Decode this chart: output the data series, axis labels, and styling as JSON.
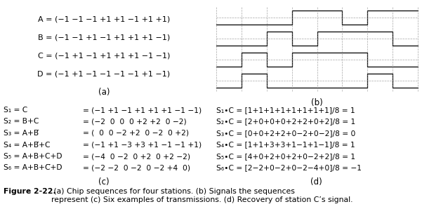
{
  "panel_a": {
    "lines": [
      "A = (−1 −1 −1 +1 +1 −1 +1 +1)",
      "B = (−1 −1 +1 −1 +1 +1 +1 −1)",
      "C = (−1 +1 −1 +1 +1 +1 −1 −1)",
      "D = (−1 +1 −1 −1 −1 −1 +1 −1)"
    ],
    "label": "(a)"
  },
  "panel_b": {
    "label": "(b)",
    "sequences": {
      "A": [
        -1,
        -1,
        -1,
        1,
        1,
        -1,
        1,
        1
      ],
      "B": [
        -1,
        -1,
        1,
        -1,
        1,
        1,
        1,
        -1
      ],
      "C": [
        -1,
        1,
        -1,
        1,
        1,
        1,
        -1,
        -1
      ],
      "D": [
        -1,
        1,
        -1,
        -1,
        -1,
        -1,
        1,
        -1
      ]
    },
    "station_order": [
      "A",
      "B",
      "C",
      "D"
    ]
  },
  "panel_c": {
    "col1": [
      "S₁ = C",
      "S₂ = B+C",
      "S₃ = A+B̅",
      "S₄ = A+B̅+C",
      "S₅ = A+B+C+D",
      "S₆ = A+B+C̅+D"
    ],
    "col2": [
      "= (−1 +1 −1 +1 +1 +1 −1 −1)",
      "= (−2  0  0  0 +2 +2  0 −2)",
      "= (  0  0 −2 +2  0 −2  0 +2)",
      "= (−1 +1 −3 +3 +1 −1 −1 +1)",
      "= (−4  0 −2  0 +2  0 +2 −2)",
      "= (−2 −2  0 −2  0 −2 +4  0)"
    ],
    "label": "(c)"
  },
  "panel_d": {
    "lines": [
      "S₁•C = [1+1+1+1+1+1+1+1]/8 = 1",
      "S₂•C = [2+0+0+0+2+2+0+2]/8 = 1",
      "S₃•C = [0+0+2+2+0−2+0−2]/8 = 0",
      "S₄•C = [1+1+3+3+1−1+1−1]/8 = 1",
      "S₅•C = [4+0+2+0+2+0−2+2]/8 = 1",
      "S₆•C = [2−2+0−2+0−2−4+0]/8 = −1"
    ],
    "label": "(d)"
  },
  "caption_bold": "Figure 2-22.",
  "caption_normal": " (a) Chip sequences for four stations. (b) Signals the sequences\nrepresent (c) Six examples of transmissions. (d) Recovery of station C’s signal.",
  "bg_color": "#ffffff",
  "fontsize_main": 8.0,
  "fontsize_label": 8.5,
  "fontsize_caption": 7.8
}
